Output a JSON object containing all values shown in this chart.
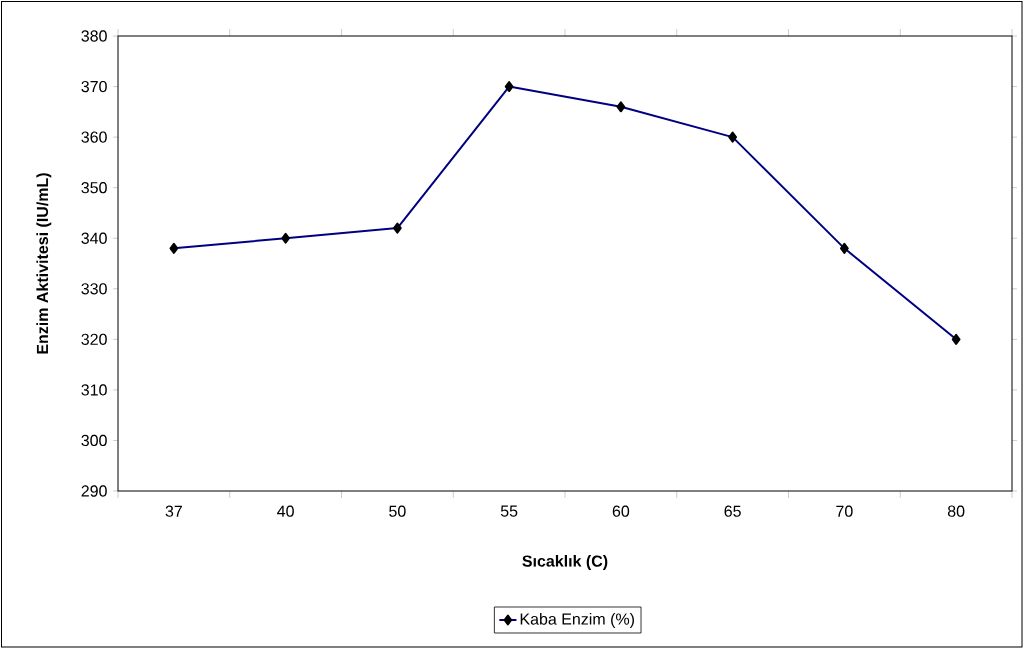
{
  "chart_data": {
    "type": "line",
    "xlabel": "Sıcaklık (C)",
    "ylabel": "Enzim Aktivitesi (IU/mL)",
    "categories": [
      "37",
      "40",
      "50",
      "55",
      "60",
      "65",
      "70",
      "80"
    ],
    "series": [
      {
        "name": "Kaba Enzim (%)",
        "color": "#000080",
        "values": [
          338,
          340,
          342,
          370,
          366,
          360,
          338,
          320
        ]
      }
    ],
    "ylim": [
      290,
      380
    ],
    "yticks": [
      290,
      300,
      310,
      320,
      330,
      340,
      350,
      360,
      370,
      380
    ],
    "grid": false,
    "legend": "bottom",
    "marker": "diamond",
    "line_style": "solid"
  }
}
